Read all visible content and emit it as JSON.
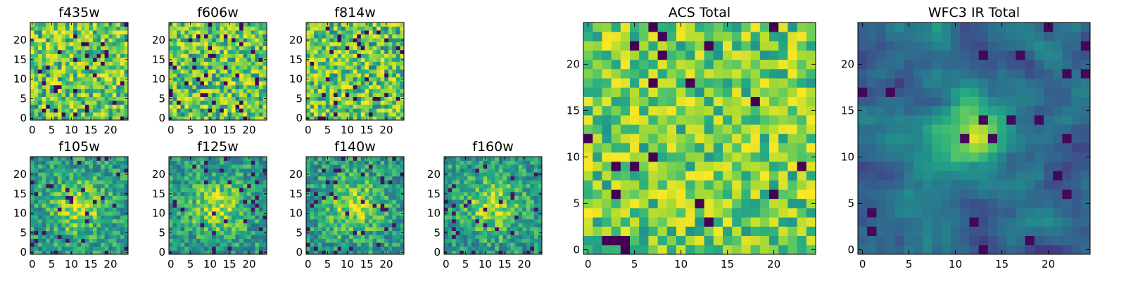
{
  "chart_data": [
    {
      "type": "heatmap",
      "title": "f435w",
      "grid": [
        25,
        25
      ],
      "xticks": [
        0,
        5,
        10,
        15,
        20
      ],
      "yticks": [
        0,
        5,
        10,
        15,
        20
      ],
      "xlim": [
        -0.5,
        24.5
      ],
      "ylim": [
        -0.5,
        24.5
      ],
      "colormap": "viridis",
      "pattern": "noise",
      "seed": 11
    },
    {
      "type": "heatmap",
      "title": "f606w",
      "grid": [
        25,
        25
      ],
      "xticks": [
        0,
        5,
        10,
        15,
        20
      ],
      "yticks": [
        0,
        5,
        10,
        15,
        20
      ],
      "xlim": [
        -0.5,
        24.5
      ],
      "ylim": [
        -0.5,
        24.5
      ],
      "colormap": "viridis",
      "pattern": "noise",
      "seed": 23
    },
    {
      "type": "heatmap",
      "title": "f814w",
      "grid": [
        25,
        25
      ],
      "xticks": [
        0,
        5,
        10,
        15,
        20
      ],
      "yticks": [
        0,
        5,
        10,
        15,
        20
      ],
      "xlim": [
        -0.5,
        24.5
      ],
      "ylim": [
        -0.5,
        24.5
      ],
      "colormap": "viridis",
      "pattern": "noise",
      "seed": 37
    },
    {
      "type": "heatmap",
      "title": "f105w",
      "grid": [
        25,
        25
      ],
      "xticks": [
        0,
        5,
        10,
        15,
        20
      ],
      "yticks": [
        0,
        5,
        10,
        15,
        20
      ],
      "xlim": [
        -0.5,
        24.5
      ],
      "ylim": [
        -0.5,
        24.5
      ],
      "colormap": "viridis",
      "pattern": "source",
      "seed": 41
    },
    {
      "type": "heatmap",
      "title": "f125w",
      "grid": [
        25,
        25
      ],
      "xticks": [
        0,
        5,
        10,
        15,
        20
      ],
      "yticks": [
        0,
        5,
        10,
        15,
        20
      ],
      "xlim": [
        -0.5,
        24.5
      ],
      "ylim": [
        -0.5,
        24.5
      ],
      "colormap": "viridis",
      "pattern": "source",
      "seed": 53
    },
    {
      "type": "heatmap",
      "title": "f140w",
      "grid": [
        25,
        25
      ],
      "xticks": [
        0,
        5,
        10,
        15,
        20
      ],
      "yticks": [
        0,
        5,
        10,
        15,
        20
      ],
      "xlim": [
        -0.5,
        24.5
      ],
      "ylim": [
        -0.5,
        24.5
      ],
      "colormap": "viridis",
      "pattern": "source",
      "seed": 67
    },
    {
      "type": "heatmap",
      "title": "f160w",
      "grid": [
        25,
        25
      ],
      "xticks": [
        0,
        5,
        10,
        15,
        20
      ],
      "yticks": [
        0,
        5,
        10,
        15,
        20
      ],
      "xlim": [
        -0.5,
        24.5
      ],
      "ylim": [
        -0.5,
        24.5
      ],
      "colormap": "viridis",
      "pattern": "source",
      "seed": 79
    },
    {
      "type": "heatmap",
      "title": "ACS Total",
      "grid": [
        25,
        25
      ],
      "xticks": [
        0,
        5,
        10,
        15,
        20
      ],
      "yticks": [
        0,
        5,
        10,
        15,
        20
      ],
      "xlim": [
        -0.5,
        24.5
      ],
      "ylim": [
        -0.5,
        24.5
      ],
      "colormap": "viridis",
      "pattern": "noise-bright",
      "seed": 97
    },
    {
      "type": "heatmap",
      "title": "WFC3 IR Total",
      "grid": [
        25,
        25
      ],
      "xticks": [
        0,
        5,
        10,
        15,
        20
      ],
      "yticks": [
        0,
        5,
        10,
        15,
        20
      ],
      "xlim": [
        -0.5,
        24.5
      ],
      "ylim": [
        -0.5,
        24.5
      ],
      "colormap": "viridis",
      "pattern": "source-smooth",
      "seed": 101,
      "source_center": [
        12,
        12.5
      ]
    }
  ],
  "colormap": {
    "name": "viridis",
    "stops": [
      "#440154",
      "#472d7b",
      "#3b528b",
      "#2c728e",
      "#21918c",
      "#28ae80",
      "#5ec962",
      "#addc30",
      "#fde725"
    ]
  }
}
